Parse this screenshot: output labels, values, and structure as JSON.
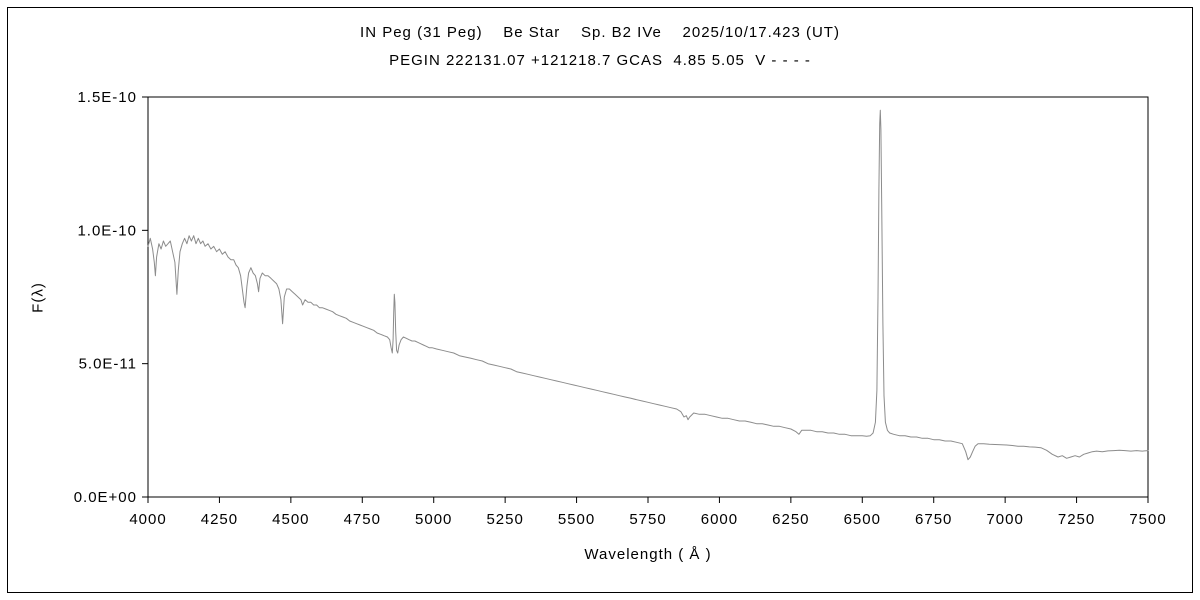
{
  "header": {
    "title_line1": "IN Peg (31 Peg)    Be Star    Sp. B2 IVe    2025/10/17.423 (UT)",
    "title_line2": "PEGIN 222131.07 +121218.7 GCAS  4.85 5.05  V - - - -"
  },
  "colors": {
    "spectrum_line": "#8c8c8c",
    "axis": "#000000",
    "background": "#ffffff"
  },
  "chart_data": {
    "type": "line",
    "title": "IN Peg (31 Peg)  Be Star  Sp. B2 IVe  2025/10/17.423 (UT)",
    "subtitle": "PEGIN 222131.07 +121218.7 GCAS 4.85 5.05 V - - - -",
    "xlabel": "Wavelength ( Å )",
    "ylabel": "F(λ)",
    "xlim": [
      4000,
      7500
    ],
    "ylim": [
      0,
      1.5e-10
    ],
    "grid": false,
    "legend": "none",
    "x_ticks": [
      4000,
      4250,
      4500,
      4750,
      5000,
      5250,
      5500,
      5750,
      6000,
      6250,
      6500,
      6750,
      7000,
      7250,
      7500
    ],
    "y_ticks": [
      {
        "value": 0,
        "label": "0.0E+00"
      },
      {
        "value": 5e-11,
        "label": "5.0E-11"
      },
      {
        "value": 1e-10,
        "label": "1.0E-10"
      },
      {
        "value": 1.5e-10,
        "label": "1.5E-10"
      }
    ],
    "flux_scale": 1e-11,
    "series": [
      {
        "name": "spectrum",
        "points": [
          [
            4000,
            9.4
          ],
          [
            4008,
            9.7
          ],
          [
            4016,
            9.3
          ],
          [
            4022,
            8.8
          ],
          [
            4026,
            8.3
          ],
          [
            4030,
            9.0
          ],
          [
            4038,
            9.5
          ],
          [
            4046,
            9.3
          ],
          [
            4054,
            9.6
          ],
          [
            4062,
            9.4
          ],
          [
            4070,
            9.5
          ],
          [
            4078,
            9.6
          ],
          [
            4086,
            9.2
          ],
          [
            4094,
            8.8
          ],
          [
            4101,
            7.6
          ],
          [
            4106,
            8.5
          ],
          [
            4112,
            9.2
          ],
          [
            4120,
            9.5
          ],
          [
            4128,
            9.7
          ],
          [
            4136,
            9.5
          ],
          [
            4144,
            9.8
          ],
          [
            4152,
            9.6
          ],
          [
            4160,
            9.8
          ],
          [
            4168,
            9.5
          ],
          [
            4176,
            9.7
          ],
          [
            4184,
            9.5
          ],
          [
            4192,
            9.6
          ],
          [
            4200,
            9.4
          ],
          [
            4210,
            9.5
          ],
          [
            4220,
            9.3
          ],
          [
            4230,
            9.4
          ],
          [
            4240,
            9.2
          ],
          [
            4250,
            9.3
          ],
          [
            4260,
            9.1
          ],
          [
            4270,
            9.2
          ],
          [
            4280,
            9.0
          ],
          [
            4290,
            8.9
          ],
          [
            4300,
            8.9
          ],
          [
            4308,
            8.7
          ],
          [
            4316,
            8.6
          ],
          [
            4324,
            8.3
          ],
          [
            4330,
            7.8
          ],
          [
            4336,
            7.3
          ],
          [
            4340,
            7.1
          ],
          [
            4346,
            7.9
          ],
          [
            4352,
            8.4
          ],
          [
            4360,
            8.6
          ],
          [
            4368,
            8.4
          ],
          [
            4376,
            8.3
          ],
          [
            4383,
            8.0
          ],
          [
            4387,
            7.7
          ],
          [
            4392,
            8.2
          ],
          [
            4400,
            8.4
          ],
          [
            4410,
            8.3
          ],
          [
            4420,
            8.3
          ],
          [
            4430,
            8.2
          ],
          [
            4440,
            8.1
          ],
          [
            4450,
            8.0
          ],
          [
            4458,
            7.8
          ],
          [
            4465,
            7.4
          ],
          [
            4471,
            6.5
          ],
          [
            4477,
            7.5
          ],
          [
            4485,
            7.8
          ],
          [
            4495,
            7.8
          ],
          [
            4505,
            7.7
          ],
          [
            4515,
            7.6
          ],
          [
            4525,
            7.5
          ],
          [
            4535,
            7.4
          ],
          [
            4541,
            7.2
          ],
          [
            4550,
            7.4
          ],
          [
            4560,
            7.3
          ],
          [
            4570,
            7.3
          ],
          [
            4580,
            7.2
          ],
          [
            4590,
            7.2
          ],
          [
            4600,
            7.1
          ],
          [
            4610,
            7.1
          ],
          [
            4622,
            7.05
          ],
          [
            4634,
            7.0
          ],
          [
            4646,
            6.95
          ],
          [
            4658,
            6.85
          ],
          [
            4670,
            6.8
          ],
          [
            4682,
            6.75
          ],
          [
            4694,
            6.7
          ],
          [
            4706,
            6.6
          ],
          [
            4718,
            6.55
          ],
          [
            4730,
            6.5
          ],
          [
            4742,
            6.45
          ],
          [
            4754,
            6.4
          ],
          [
            4766,
            6.35
          ],
          [
            4778,
            6.3
          ],
          [
            4790,
            6.25
          ],
          [
            4802,
            6.15
          ],
          [
            4814,
            6.1
          ],
          [
            4826,
            6.05
          ],
          [
            4838,
            6.0
          ],
          [
            4846,
            5.9
          ],
          [
            4851,
            5.6
          ],
          [
            4855,
            5.4
          ],
          [
            4858,
            5.9
          ],
          [
            4860,
            6.9
          ],
          [
            4862,
            7.6
          ],
          [
            4864,
            7.3
          ],
          [
            4867,
            6.2
          ],
          [
            4870,
            5.5
          ],
          [
            4874,
            5.4
          ],
          [
            4879,
            5.7
          ],
          [
            4886,
            5.9
          ],
          [
            4894,
            6.0
          ],
          [
            4904,
            5.95
          ],
          [
            4914,
            5.9
          ],
          [
            4924,
            5.85
          ],
          [
            4934,
            5.85
          ],
          [
            4944,
            5.8
          ],
          [
            4954,
            5.75
          ],
          [
            4964,
            5.7
          ],
          [
            4974,
            5.65
          ],
          [
            4984,
            5.6
          ],
          [
            4994,
            5.6
          ],
          [
            5010,
            5.55
          ],
          [
            5030,
            5.5
          ],
          [
            5050,
            5.45
          ],
          [
            5070,
            5.4
          ],
          [
            5090,
            5.3
          ],
          [
            5110,
            5.25
          ],
          [
            5130,
            5.2
          ],
          [
            5150,
            5.15
          ],
          [
            5170,
            5.1
          ],
          [
            5190,
            5.0
          ],
          [
            5210,
            4.95
          ],
          [
            5230,
            4.9
          ],
          [
            5250,
            4.85
          ],
          [
            5270,
            4.8
          ],
          [
            5290,
            4.7
          ],
          [
            5310,
            4.65
          ],
          [
            5330,
            4.6
          ],
          [
            5350,
            4.55
          ],
          [
            5370,
            4.5
          ],
          [
            5390,
            4.45
          ],
          [
            5410,
            4.4
          ],
          [
            5430,
            4.35
          ],
          [
            5450,
            4.3
          ],
          [
            5470,
            4.25
          ],
          [
            5490,
            4.2
          ],
          [
            5510,
            4.15
          ],
          [
            5530,
            4.1
          ],
          [
            5550,
            4.05
          ],
          [
            5570,
            4.0
          ],
          [
            5590,
            3.95
          ],
          [
            5610,
            3.9
          ],
          [
            5630,
            3.85
          ],
          [
            5650,
            3.8
          ],
          [
            5670,
            3.75
          ],
          [
            5690,
            3.7
          ],
          [
            5710,
            3.65
          ],
          [
            5730,
            3.6
          ],
          [
            5750,
            3.55
          ],
          [
            5770,
            3.5
          ],
          [
            5790,
            3.45
          ],
          [
            5810,
            3.4
          ],
          [
            5830,
            3.35
          ],
          [
            5850,
            3.3
          ],
          [
            5865,
            3.2
          ],
          [
            5876,
            3.0
          ],
          [
            5884,
            3.05
          ],
          [
            5890,
            2.9
          ],
          [
            5896,
            3.0
          ],
          [
            5910,
            3.15
          ],
          [
            5930,
            3.1
          ],
          [
            5950,
            3.1
          ],
          [
            5970,
            3.05
          ],
          [
            5990,
            3.0
          ],
          [
            6010,
            2.95
          ],
          [
            6030,
            2.95
          ],
          [
            6050,
            2.9
          ],
          [
            6070,
            2.85
          ],
          [
            6090,
            2.85
          ],
          [
            6110,
            2.8
          ],
          [
            6130,
            2.75
          ],
          [
            6150,
            2.75
          ],
          [
            6170,
            2.7
          ],
          [
            6190,
            2.65
          ],
          [
            6210,
            2.65
          ],
          [
            6230,
            2.6
          ],
          [
            6250,
            2.55
          ],
          [
            6268,
            2.45
          ],
          [
            6278,
            2.35
          ],
          [
            6288,
            2.5
          ],
          [
            6300,
            2.5
          ],
          [
            6320,
            2.5
          ],
          [
            6340,
            2.45
          ],
          [
            6360,
            2.45
          ],
          [
            6380,
            2.4
          ],
          [
            6400,
            2.4
          ],
          [
            6420,
            2.35
          ],
          [
            6440,
            2.35
          ],
          [
            6460,
            2.3
          ],
          [
            6480,
            2.3
          ],
          [
            6500,
            2.3
          ],
          [
            6515,
            2.28
          ],
          [
            6528,
            2.3
          ],
          [
            6538,
            2.4
          ],
          [
            6546,
            2.8
          ],
          [
            6551,
            4.0
          ],
          [
            6555,
            7.5
          ],
          [
            6558,
            11.5
          ],
          [
            6561,
            14.0
          ],
          [
            6563,
            14.5
          ],
          [
            6565,
            13.8
          ],
          [
            6568,
            11.0
          ],
          [
            6572,
            6.5
          ],
          [
            6576,
            3.8
          ],
          [
            6581,
            2.8
          ],
          [
            6588,
            2.5
          ],
          [
            6596,
            2.4
          ],
          [
            6610,
            2.35
          ],
          [
            6630,
            2.3
          ],
          [
            6650,
            2.3
          ],
          [
            6670,
            2.25
          ],
          [
            6690,
            2.25
          ],
          [
            6710,
            2.2
          ],
          [
            6730,
            2.2
          ],
          [
            6750,
            2.15
          ],
          [
            6770,
            2.15
          ],
          [
            6790,
            2.1
          ],
          [
            6810,
            2.1
          ],
          [
            6830,
            2.05
          ],
          [
            6850,
            2.0
          ],
          [
            6862,
            1.7
          ],
          [
            6870,
            1.4
          ],
          [
            6878,
            1.5
          ],
          [
            6886,
            1.7
          ],
          [
            6895,
            1.9
          ],
          [
            6905,
            2.0
          ],
          [
            6925,
            2.0
          ],
          [
            6945,
            1.98
          ],
          [
            6965,
            1.97
          ],
          [
            6985,
            1.96
          ],
          [
            7005,
            1.95
          ],
          [
            7025,
            1.93
          ],
          [
            7045,
            1.9
          ],
          [
            7065,
            1.9
          ],
          [
            7085,
            1.88
          ],
          [
            7105,
            1.87
          ],
          [
            7125,
            1.85
          ],
          [
            7145,
            1.75
          ],
          [
            7165,
            1.6
          ],
          [
            7185,
            1.5
          ],
          [
            7200,
            1.55
          ],
          [
            7215,
            1.45
          ],
          [
            7230,
            1.5
          ],
          [
            7245,
            1.55
          ],
          [
            7260,
            1.5
          ],
          [
            7275,
            1.6
          ],
          [
            7290,
            1.65
          ],
          [
            7305,
            1.7
          ],
          [
            7320,
            1.72
          ],
          [
            7340,
            1.7
          ],
          [
            7360,
            1.73
          ],
          [
            7380,
            1.74
          ],
          [
            7400,
            1.75
          ],
          [
            7420,
            1.74
          ],
          [
            7440,
            1.72
          ],
          [
            7460,
            1.74
          ],
          [
            7480,
            1.72
          ],
          [
            7500,
            1.74
          ]
        ]
      }
    ]
  }
}
